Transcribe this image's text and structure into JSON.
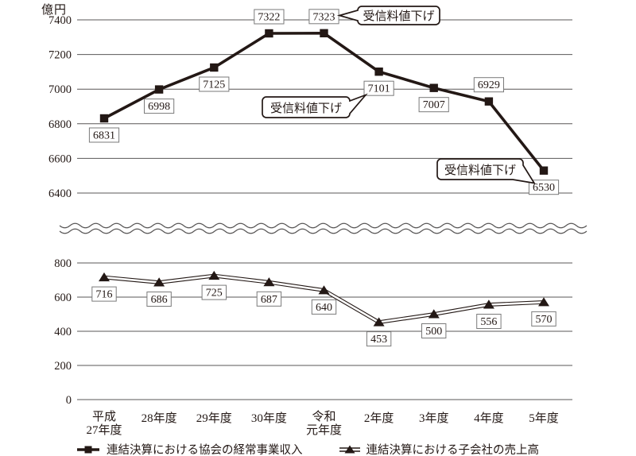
{
  "colors": {
    "line": "#231815",
    "grid": "#595757",
    "text": "#231815",
    "label_box_border": "#7a7a7a",
    "background": "#ffffff"
  },
  "chart_data": {
    "type": "line",
    "unit": "億円",
    "categories": [
      "平成\n27年度",
      "28年度",
      "29年度",
      "30年度",
      "令和\n元年度",
      "2年度",
      "3年度",
      "4年度",
      "5年度"
    ],
    "axis_break": true,
    "grid": true,
    "panels": [
      {
        "id": "top",
        "axis_ticks": [
          7400,
          7200,
          7000,
          6800,
          6600,
          6400
        ],
        "ylim": [
          6400,
          7400
        ]
      },
      {
        "id": "bottom",
        "axis_ticks": [
          800,
          600,
          400,
          200,
          0
        ],
        "ylim": [
          0,
          800
        ]
      }
    ],
    "series": [
      {
        "name": "連結決算における協会の経常事業収入",
        "panel": "top",
        "marker": "square",
        "line_style": "thick-solid",
        "values": [
          6831,
          6998,
          7125,
          7322,
          7323,
          7101,
          7007,
          6929,
          6530
        ],
        "label_side": [
          "below",
          "below",
          "below",
          "above",
          "above",
          "below",
          "below",
          "above",
          "below"
        ]
      },
      {
        "name": "連結決算における子会社の売上高",
        "panel": "bottom",
        "marker": "triangle",
        "line_style": "double",
        "values": [
          716,
          686,
          725,
          687,
          640,
          453,
          500,
          556,
          570
        ],
        "label_side": [
          "below",
          "below",
          "below",
          "below",
          "below",
          "below",
          "below",
          "below",
          "below"
        ]
      }
    ],
    "annotations": [
      {
        "text": "受信料値下げ",
        "series": 0,
        "point_index": 4,
        "target_value": 7323
      },
      {
        "text": "受信料値下げ",
        "series": 0,
        "point_index": 5,
        "target_value": 7101
      },
      {
        "text": "受信料値下げ",
        "series": 0,
        "point_index": 8,
        "target_value": 6530
      }
    ],
    "legend": [
      {
        "label": "連結決算における協会の経常事業収入",
        "marker": "square"
      },
      {
        "label": "連結決算における子会社の売上高",
        "marker": "triangle"
      }
    ],
    "legend_position": "bottom"
  }
}
